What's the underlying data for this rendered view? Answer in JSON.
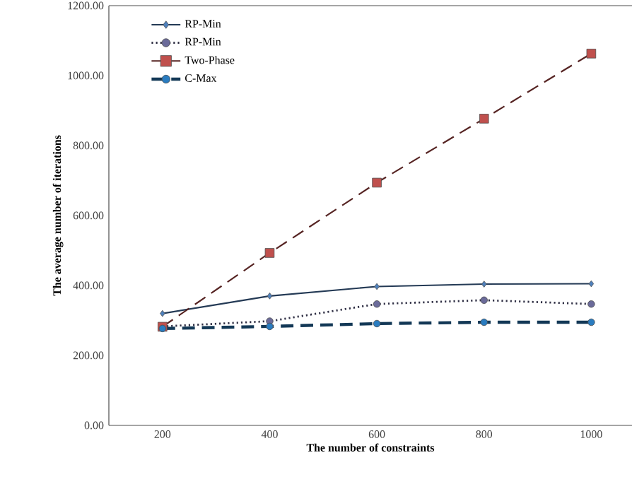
{
  "chart_data": {
    "type": "line",
    "xlabel": "The number of constraints",
    "ylabel": "The  average number of iterations",
    "categories": [
      "200",
      "400",
      "600",
      "800",
      "1000"
    ],
    "series": [
      {
        "name": "RP-Min",
        "color": "#4f81bd",
        "line_style": "solid",
        "marker": "diamond",
        "values": [
          320,
          370,
          397,
          404,
          405
        ]
      },
      {
        "name": "RP-Min",
        "color": "#6b6b9a",
        "line_style": "dotted",
        "marker": "circle",
        "values": [
          283,
          298,
          347,
          358,
          347
        ]
      },
      {
        "name": "C-Max",
        "color": "#2a7cc0",
        "line_style": "dashed",
        "marker": "circle",
        "values": [
          277,
          283,
          291,
          295,
          295
        ]
      },
      {
        "name": "Two-Phase",
        "color": "#c0504d",
        "line_style": "dashed",
        "marker": "square",
        "values": [
          282,
          493,
          694,
          877,
          1063
        ]
      }
    ],
    "ylim": [
      0,
      1200
    ],
    "yticks": [
      {
        "value": 0,
        "label": "0.00"
      },
      {
        "value": 200,
        "label": "200.00"
      },
      {
        "value": 400,
        "label": "400.00"
      },
      {
        "value": 600,
        "label": "600.00"
      },
      {
        "value": 800,
        "label": "800.00"
      },
      {
        "value": 1000,
        "label": "1000.00"
      },
      {
        "value": 1200,
        "label": "1200.00"
      }
    ],
    "legend": "top left",
    "grid": false
  }
}
